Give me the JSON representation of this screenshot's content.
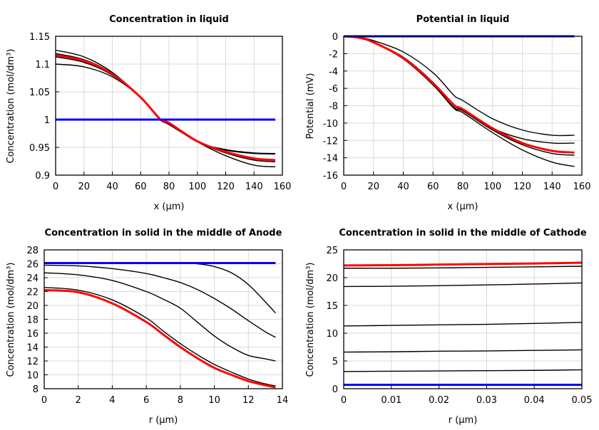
{
  "chart_data": [
    {
      "type": "line",
      "title": "Concentration in liquid",
      "xlabel": "x (µm)",
      "ylabel": "Concentration (mol/dm³)",
      "xlim": [
        0,
        160
      ],
      "ylim": [
        0.9,
        1.15
      ],
      "xticks": [
        0,
        20,
        40,
        60,
        80,
        100,
        120,
        140,
        160
      ],
      "yticks": [
        0.9,
        0.95,
        1,
        1.05,
        1.1,
        1.15
      ],
      "xtick_labels": [
        "0",
        "20",
        "40",
        "60",
        "80",
        "100",
        "120",
        "140",
        "160"
      ],
      "ytick_labels": [
        "0.9",
        "0.95",
        "1",
        "1.05",
        "1.1",
        "1.15"
      ],
      "grid": true,
      "x": [
        0,
        20,
        40,
        60,
        74,
        80,
        100,
        120,
        140,
        155
      ],
      "series": [
        {
          "color": "#000000",
          "values": [
            1.125,
            1.113,
            1.085,
            1.04,
            1.0,
            0.993,
            0.96,
            0.946,
            0.94,
            0.939
          ]
        },
        {
          "color": "#000000",
          "values": [
            1.119,
            1.108,
            1.083,
            1.04,
            1.0,
            0.993,
            0.96,
            0.945,
            0.939,
            0.938
          ]
        },
        {
          "color": "#000000",
          "values": [
            1.113,
            1.103,
            1.08,
            1.04,
            1.0,
            0.993,
            0.96,
            0.94,
            0.927,
            0.924
          ]
        },
        {
          "color": "#000000",
          "values": [
            1.1,
            1.095,
            1.077,
            1.04,
            1.0,
            0.991,
            0.96,
            0.935,
            0.918,
            0.915
          ]
        },
        {
          "color": "#ff0000",
          "values": [
            1.116,
            1.106,
            1.082,
            1.04,
            1.0,
            0.994,
            0.961,
            0.942,
            0.93,
            0.927
          ],
          "bold": true
        },
        {
          "color": "#0000ff",
          "values": [
            1,
            1,
            1,
            1,
            1,
            1,
            1,
            1,
            1,
            1
          ],
          "bold": true
        }
      ]
    },
    {
      "type": "line",
      "title": "Potential in liquid",
      "xlabel": "x (µm)",
      "ylabel": "Potential (mV)",
      "xlim": [
        0,
        160
      ],
      "ylim": [
        -16,
        0
      ],
      "xticks": [
        0,
        20,
        40,
        60,
        80,
        100,
        120,
        140,
        160
      ],
      "yticks": [
        -16,
        -14,
        -12,
        -10,
        -8,
        -6,
        -4,
        -2,
        0
      ],
      "xtick_labels": [
        "0",
        "20",
        "40",
        "60",
        "80",
        "100",
        "120",
        "140",
        "160"
      ],
      "ytick_labels": [
        "-16",
        "-14",
        "-12",
        "-10",
        "-8",
        "-6",
        "-4",
        "-2",
        "0"
      ],
      "grid": true,
      "x": [
        0,
        10,
        20,
        40,
        60,
        74,
        80,
        100,
        120,
        140,
        155
      ],
      "series": [
        {
          "color": "#000000",
          "values": [
            0,
            -0.1,
            -0.5,
            -1.8,
            -4.2,
            -6.8,
            -7.4,
            -9.5,
            -10.8,
            -11.4,
            -11.4
          ]
        },
        {
          "color": "#000000",
          "values": [
            0,
            -0.15,
            -0.7,
            -2.4,
            -5.3,
            -8.0,
            -8.5,
            -10.6,
            -11.8,
            -12.3,
            -12.3
          ]
        },
        {
          "color": "#000000",
          "values": [
            0,
            -0.15,
            -0.7,
            -2.6,
            -5.6,
            -8.2,
            -8.6,
            -10.8,
            -12.5,
            -13.5,
            -13.7
          ]
        },
        {
          "color": "#000000",
          "values": [
            0,
            -0.15,
            -0.7,
            -2.6,
            -5.6,
            -8.3,
            -8.8,
            -11.1,
            -13.1,
            -14.5,
            -15.0
          ]
        },
        {
          "color": "#ff0000",
          "values": [
            0,
            -0.15,
            -0.7,
            -2.5,
            -5.4,
            -7.9,
            -8.4,
            -10.6,
            -12.3,
            -13.2,
            -13.4
          ],
          "bold": true
        },
        {
          "color": "#0000ff",
          "values": [
            0,
            0,
            0,
            0,
            0,
            0,
            0,
            0,
            0,
            0,
            0
          ],
          "bold": true
        }
      ]
    },
    {
      "type": "line",
      "title": "Concentration in solid in the middle of Anode",
      "xlabel": "r (µm)",
      "ylabel": "Concentration (mol/dm³)",
      "xlim": [
        0,
        14
      ],
      "ylim": [
        8,
        28
      ],
      "xticks": [
        0,
        2,
        4,
        6,
        8,
        10,
        12,
        14
      ],
      "yticks": [
        8,
        10,
        12,
        14,
        16,
        18,
        20,
        22,
        24,
        26,
        28
      ],
      "xtick_labels": [
        "0",
        "2",
        "4",
        "6",
        "8",
        "10",
        "12",
        "14"
      ],
      "ytick_labels": [
        "8",
        "10",
        "12",
        "14",
        "16",
        "18",
        "20",
        "22",
        "24",
        "26",
        "28"
      ],
      "grid": true,
      "x": [
        0,
        2,
        4,
        6,
        7,
        8,
        9,
        10,
        11,
        12,
        13,
        13.6
      ],
      "series": [
        {
          "color": "#000000",
          "values": [
            26.1,
            26.1,
            26.1,
            26.1,
            26.1,
            26.1,
            26.0,
            25.6,
            24.7,
            23.0,
            20.5,
            18.9
          ]
        },
        {
          "color": "#000000",
          "values": [
            25.8,
            25.7,
            25.3,
            24.6,
            24.0,
            23.3,
            22.3,
            21.0,
            19.5,
            17.8,
            16.2,
            15.4
          ]
        },
        {
          "color": "#000000",
          "values": [
            24.7,
            24.4,
            23.6,
            22.0,
            20.9,
            19.6,
            17.6,
            15.6,
            14.0,
            12.8,
            12.3,
            12.0
          ]
        },
        {
          "color": "#000000",
          "values": [
            22.6,
            22.2,
            20.8,
            18.2,
            16.3,
            14.5,
            12.9,
            11.5,
            10.4,
            9.4,
            8.7,
            8.4
          ]
        },
        {
          "color": "#ff0000",
          "values": [
            22.2,
            21.9,
            20.3,
            17.6,
            15.8,
            14.0,
            12.4,
            11.0,
            10.0,
            9.1,
            8.5,
            8.2
          ],
          "bold": true
        },
        {
          "color": "#0000ff",
          "values": [
            26.1,
            26.1,
            26.1,
            26.1,
            26.1,
            26.1,
            26.1,
            26.1,
            26.1,
            26.1,
            26.1,
            26.1
          ],
          "bold": true
        }
      ]
    },
    {
      "type": "line",
      "title": "Concentration in solid in the middle of Cathode",
      "xlabel": "r (µm)",
      "ylabel": "Concentration (mol/dm³)",
      "xlim": [
        0,
        0.05
      ],
      "ylim": [
        0,
        25
      ],
      "xticks": [
        0,
        0.01,
        0.02,
        0.03,
        0.04,
        0.05
      ],
      "yticks": [
        0,
        5,
        10,
        15,
        20,
        25
      ],
      "xtick_labels": [
        "0",
        "0.01",
        "0.02",
        "0.03",
        "0.04",
        "0.05"
      ],
      "ytick_labels": [
        "0",
        "5",
        "10",
        "15",
        "20",
        "25"
      ],
      "grid": true,
      "x": [
        0,
        0.01,
        0.02,
        0.03,
        0.04,
        0.05
      ],
      "series": [
        {
          "color": "#000000",
          "values": [
            21.7,
            21.7,
            21.75,
            21.85,
            21.95,
            22.05
          ]
        },
        {
          "color": "#000000",
          "values": [
            18.4,
            18.45,
            18.55,
            18.7,
            18.85,
            19.05
          ]
        },
        {
          "color": "#000000",
          "values": [
            11.3,
            11.4,
            11.5,
            11.6,
            11.75,
            11.95
          ]
        },
        {
          "color": "#000000",
          "values": [
            6.6,
            6.65,
            6.75,
            6.8,
            6.9,
            7.0
          ]
        },
        {
          "color": "#000000",
          "values": [
            3.1,
            3.15,
            3.2,
            3.25,
            3.3,
            3.4
          ]
        },
        {
          "color": "#ff0000",
          "values": [
            22.2,
            22.25,
            22.35,
            22.45,
            22.55,
            22.7
          ],
          "bold": true
        },
        {
          "color": "#0000ff",
          "values": [
            0.7,
            0.7,
            0.7,
            0.7,
            0.7,
            0.7
          ],
          "bold": true
        }
      ]
    }
  ]
}
